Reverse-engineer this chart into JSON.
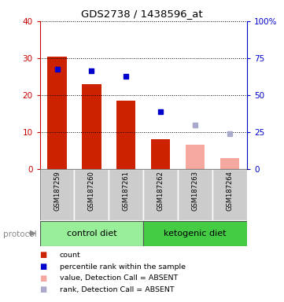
{
  "title": "GDS2738 / 1438596_at",
  "samples": [
    "GSM187259",
    "GSM187260",
    "GSM187261",
    "GSM187262",
    "GSM187263",
    "GSM187264"
  ],
  "bar_values": [
    30.5,
    23.0,
    18.5,
    8.0,
    null,
    null
  ],
  "bar_colors_present": "#cc2200",
  "bar_colors_absent": "#f4a8a0",
  "absent_bar_values": [
    null,
    null,
    null,
    null,
    6.5,
    3.0
  ],
  "blue_dots_present": [
    27.0,
    26.5,
    25.0,
    15.5,
    null,
    null
  ],
  "blue_dots_absent": [
    null,
    null,
    null,
    null,
    12.0,
    9.5
  ],
  "blue_dot_color": "#0000cc",
  "blue_dot_absent_color": "#aaaacc",
  "ylim_left": [
    0,
    40
  ],
  "ylim_right": [
    0,
    100
  ],
  "yticks_left": [
    0,
    10,
    20,
    30,
    40
  ],
  "yticks_right": [
    0,
    25,
    50,
    75,
    100
  ],
  "ytick_labels_left": [
    "0",
    "10",
    "20",
    "30",
    "40"
  ],
  "ytick_labels_right": [
    "0",
    "25",
    "50",
    "75",
    "100%"
  ],
  "left_axis_color": "#cc0000",
  "right_axis_color": "#0000cc",
  "protocol_groups": [
    {
      "label": "control diet",
      "samples": [
        0,
        1,
        2
      ],
      "color": "#99ee99"
    },
    {
      "label": "ketogenic diet",
      "samples": [
        3,
        4,
        5
      ],
      "color": "#44cc44"
    }
  ],
  "protocol_label": "protocol",
  "sample_box_color": "#cccccc",
  "legend_items": [
    {
      "color": "#cc2200",
      "label": "count"
    },
    {
      "color": "#0000cc",
      "label": "percentile rank within the sample"
    },
    {
      "color": "#f4a8a0",
      "label": "value, Detection Call = ABSENT"
    },
    {
      "color": "#aaaacc",
      "label": "rank, Detection Call = ABSENT"
    }
  ],
  "bar_width": 0.55,
  "background_color": "#ffffff"
}
